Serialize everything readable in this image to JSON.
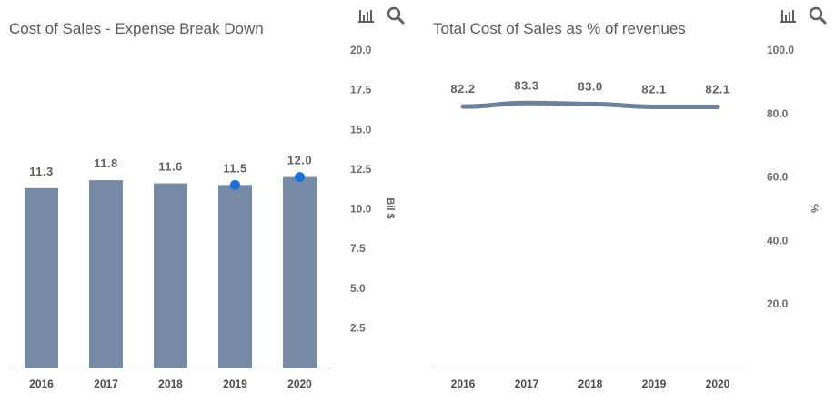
{
  "charts": {
    "left": {
      "title": "Cost of Sales - Expense Break Down"
    },
    "right": {
      "title": "Total Cost of Sales as % of revenues"
    }
  },
  "icons": [
    "bar-chart-icon",
    "search-icon"
  ],
  "colors": {
    "bar": "#778aa5",
    "line": "#6f809b",
    "marker": "#1a73d9",
    "axis": "#d0d0d0"
  },
  "chart_data": [
    {
      "type": "bar",
      "title": "Cost of Sales - Expense Break Down",
      "categories": [
        "2016",
        "2017",
        "2018",
        "2019",
        "2020"
      ],
      "values": [
        11.3,
        11.8,
        11.6,
        11.5,
        12.0
      ],
      "data_labels": [
        "11.3",
        "11.8",
        "11.6",
        "11.5",
        "12.0"
      ],
      "markers": [
        {
          "category": "2019",
          "value": 11.5
        },
        {
          "category": "2020",
          "value": 12.0
        }
      ],
      "ylabel": "Bil $",
      "ylim": [
        0,
        20
      ],
      "yticks": [
        "2.5",
        "5.0",
        "7.5",
        "10.0",
        "12.5",
        "15.0",
        "17.5",
        "20.0"
      ],
      "ytick_values": [
        2.5,
        5,
        7.5,
        10,
        12.5,
        15,
        17.5,
        20
      ],
      "yaxis_position": "right",
      "grid": false
    },
    {
      "type": "line",
      "title": "Total Cost of Sales as % of revenues",
      "categories": [
        "2016",
        "2017",
        "2018",
        "2019",
        "2020"
      ],
      "values": [
        82.2,
        83.3,
        83.0,
        82.1,
        82.1
      ],
      "data_labels": [
        "82.2",
        "83.3",
        "83.0",
        "82.1",
        "82.1"
      ],
      "ylabel": "%",
      "ylim": [
        0,
        100
      ],
      "yticks": [
        "20.0",
        "40.0",
        "60.0",
        "80.0",
        "100.0"
      ],
      "ytick_values": [
        20,
        40,
        60,
        80,
        100
      ],
      "yaxis_position": "right",
      "grid": false
    }
  ]
}
